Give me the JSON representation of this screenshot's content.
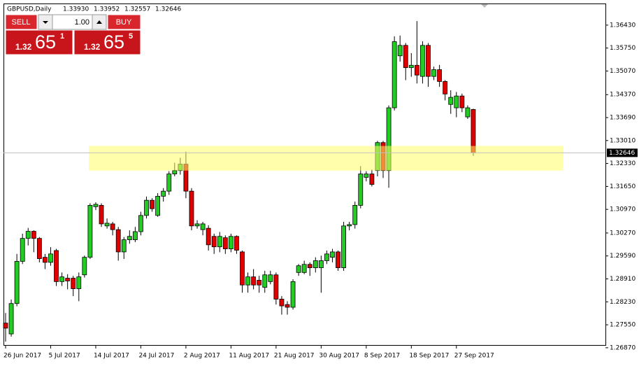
{
  "header": {
    "symbol": "GBPUSD,Daily",
    "ohlc": [
      "1.33930",
      "1.33952",
      "1.32557",
      "1.32646"
    ]
  },
  "trade_panel": {
    "sell": "SELL",
    "buy": "BUY",
    "lots": "1.00",
    "sell_price": {
      "big_figure": "1.32",
      "pips": "65",
      "fraction": "1"
    },
    "buy_price": {
      "big_figure": "1.32",
      "pips": "65",
      "fraction": "5"
    }
  },
  "chart_data": {
    "type": "candlestick",
    "categories": [
      "26 Jun 2017",
      null,
      null,
      null,
      null,
      null,
      null,
      null,
      "5 Jul 2017",
      null,
      null,
      null,
      null,
      null,
      null,
      null,
      "14 Jul 2017",
      null,
      null,
      null,
      null,
      null,
      null,
      null,
      "24 Jul 2017",
      null,
      null,
      null,
      null,
      null,
      null,
      null,
      "2 Aug 2017",
      null,
      null,
      null,
      null,
      null,
      null,
      null,
      "11 Aug 2017",
      null,
      null,
      null,
      null,
      null,
      null,
      null,
      "21 Aug 2017",
      null,
      null,
      null,
      null,
      null,
      null,
      null,
      "30 Aug 2017",
      null,
      null,
      null,
      null,
      null,
      null,
      null,
      "8 Sep 2017",
      null,
      null,
      null,
      null,
      null,
      null,
      null,
      "18 Sep 2017",
      null,
      null,
      null,
      null,
      null,
      null,
      null,
      "27 Sep 2017",
      null,
      null,
      null
    ],
    "open": [
      1.276,
      1.2728,
      1.2818,
      1.2943,
      1.3011,
      1.3032,
      1.3011,
      1.2955,
      1.294,
      1.2975,
      1.2883,
      1.2893,
      1.2893,
      1.2862,
      1.2903,
      1.2955,
      1.3105,
      1.3109,
      1.3048,
      1.3054,
      1.3037,
      1.2971,
      1.3007,
      1.3007,
      1.3031,
      1.3079,
      1.3124,
      1.3079,
      1.3136,
      1.3151,
      1.3202,
      1.3212,
      1.3231,
      1.3151,
      1.3048,
      1.3037,
      1.3041,
      1.3017,
      1.2986,
      1.3013,
      1.298,
      1.3017,
      1.2971,
      1.2873,
      1.2897,
      1.2887,
      1.2866,
      1.2883,
      1.2903,
      1.2831,
      1.2815,
      1.2807,
      1.291,
      1.291,
      1.2934,
      1.2924,
      1.2924,
      1.2945,
      1.2955,
      1.2971,
      1.2924,
      1.3048,
      1.3052,
      1.3109,
      1.3192,
      1.3202,
      1.3212,
      1.3295,
      1.3212,
      1.3398,
      1.3552,
      1.3583,
      1.3517,
      1.3524,
      1.3491,
      1.3583,
      1.3491,
      1.3511,
      1.3476,
      1.3408,
      1.3398,
      1.3433,
      1.3371,
      1.3393
    ],
    "high": [
      1.279,
      1.283,
      1.2965,
      1.3025,
      1.3042,
      1.3035,
      1.3015,
      1.2965,
      1.2985,
      1.298,
      1.291,
      1.2905,
      1.29,
      1.291,
      1.296,
      1.3115,
      1.3118,
      1.3115,
      1.307,
      1.306,
      1.3045,
      1.3015,
      1.3035,
      1.3045,
      1.309,
      1.3135,
      1.313,
      1.3145,
      1.316,
      1.321,
      1.3235,
      1.325,
      1.3268,
      1.316,
      1.3065,
      1.306,
      1.305,
      1.3025,
      1.303,
      1.302,
      1.3025,
      1.302,
      1.2975,
      1.291,
      1.292,
      1.29,
      1.2915,
      1.2915,
      1.291,
      1.284,
      1.2825,
      1.289,
      1.2935,
      1.2945,
      1.294,
      1.2955,
      1.296,
      1.2975,
      1.298,
      1.2975,
      1.306,
      1.306,
      1.312,
      1.3225,
      1.321,
      1.3215,
      1.33,
      1.33,
      1.3405,
      1.361,
      1.3612,
      1.359,
      1.356,
      1.3655,
      1.3595,
      1.359,
      1.352,
      1.3525,
      1.348,
      1.345,
      1.3445,
      1.344,
      1.3405,
      1.33952
    ],
    "low": [
      1.2705,
      1.272,
      1.281,
      1.2935,
      1.299,
      1.297,
      1.294,
      1.292,
      1.293,
      1.287,
      1.287,
      1.286,
      1.284,
      1.2825,
      1.2895,
      1.295,
      1.3095,
      1.3045,
      1.304,
      1.302,
      1.2945,
      1.295,
      1.2995,
      1.3,
      1.302,
      1.307,
      1.309,
      1.3075,
      1.312,
      1.314,
      1.3195,
      1.32,
      1.313,
      1.3035,
      1.304,
      1.302,
      1.2975,
      1.2965,
      1.297,
      1.2965,
      1.297,
      1.2965,
      1.285,
      1.285,
      1.286,
      1.285,
      1.285,
      1.2875,
      1.2815,
      1.2785,
      1.2785,
      1.28,
      1.29,
      1.2905,
      1.29,
      1.291,
      1.285,
      1.2935,
      1.294,
      1.2915,
      1.2915,
      1.3035,
      1.304,
      1.31,
      1.318,
      1.3165,
      1.3195,
      1.319,
      1.3161,
      1.339,
      1.3535,
      1.348,
      1.349,
      1.347,
      1.347,
      1.346,
      1.348,
      1.346,
      1.342,
      1.338,
      1.337,
      1.3385,
      1.3365,
      1.32557
    ],
    "close": [
      1.2745,
      1.2818,
      1.2943,
      1.3011,
      1.3032,
      1.3011,
      1.2951,
      1.294,
      1.2965,
      1.2883,
      1.2897,
      1.2885,
      1.2862,
      1.2897,
      1.2955,
      1.3109,
      1.3112,
      1.3054,
      1.3056,
      1.3037,
      1.2971,
      1.3007,
      1.3017,
      1.3031,
      1.3079,
      1.3124,
      1.3099,
      1.3136,
      1.3151,
      1.3202,
      1.3212,
      1.3231,
      1.3151,
      1.3048,
      1.3054,
      1.3054,
      1.2992,
      1.2986,
      1.3017,
      1.298,
      1.3017,
      1.2976,
      1.2873,
      1.2897,
      1.2873,
      1.2873,
      1.2903,
      1.2903,
      1.2831,
      1.2811,
      1.2807,
      1.2883,
      1.293,
      1.2934,
      1.2924,
      1.2945,
      1.2945,
      1.2965,
      1.2971,
      1.2924,
      1.3048,
      1.3052,
      1.3109,
      1.3202,
      1.3202,
      1.3171,
      1.3295,
      1.3212,
      1.3398,
      1.3594,
      1.3583,
      1.3517,
      1.3524,
      1.3495,
      1.3583,
      1.3491,
      1.3511,
      1.3476,
      1.3439,
      1.3429,
      1.3433,
      1.3398,
      1.3398,
      1.32646
    ],
    "up_color": "#22cc22",
    "down_color": "#e00000",
    "ylim": [
      1.2693,
      1.3705
    ],
    "yticks": [
      {
        "value": 1.3643,
        "label": "1.36430"
      },
      {
        "value": 1.3575,
        "label": "1.35750"
      },
      {
        "value": 1.3507,
        "label": "1.35070"
      },
      {
        "value": 1.3437,
        "label": "1.34370"
      },
      {
        "value": 1.3369,
        "label": "1.33690"
      },
      {
        "value": 1.3301,
        "label": "1.33010"
      },
      {
        "value": 1.3233,
        "label": "1.32330"
      },
      {
        "value": 1.3165,
        "label": "1.31650"
      },
      {
        "value": 1.3097,
        "label": "1.30970"
      },
      {
        "value": 1.3027,
        "label": "1.30270"
      },
      {
        "value": 1.2959,
        "label": "1.29590"
      },
      {
        "value": 1.2891,
        "label": "1.28910"
      },
      {
        "value": 1.2823,
        "label": "1.28230"
      },
      {
        "value": 1.2755,
        "label": "1.27550"
      },
      {
        "value": 1.2687,
        "label": "1.26870"
      }
    ],
    "price_line": 1.32646,
    "zone": {
      "from": 1.3212,
      "to": 1.3285,
      "color": "#ffff66"
    }
  }
}
